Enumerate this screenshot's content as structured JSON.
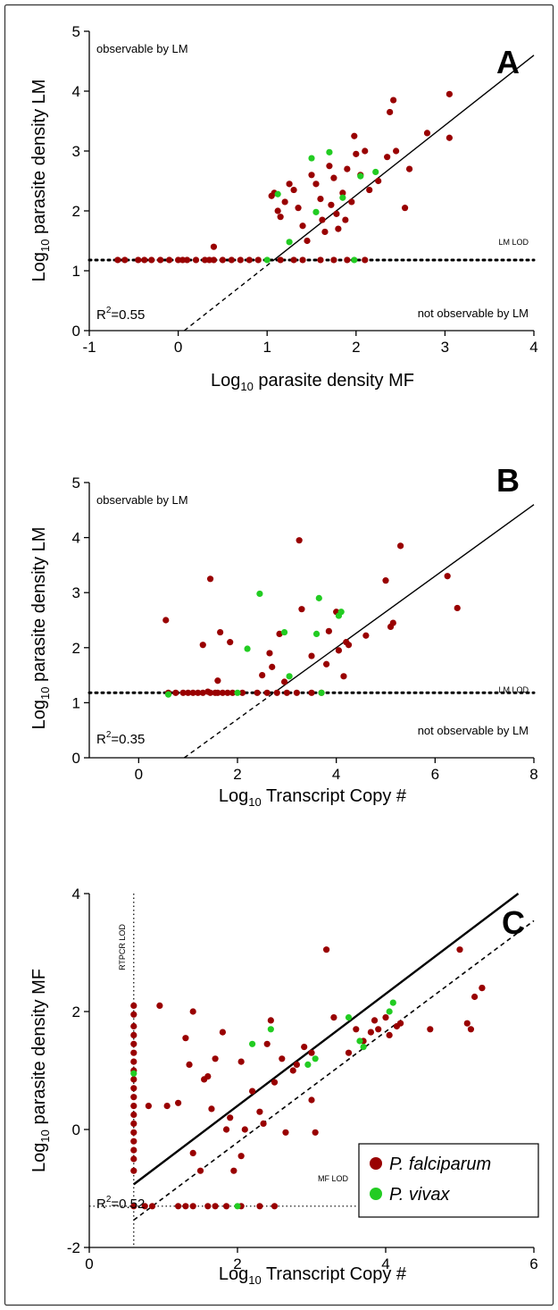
{
  "colors": {
    "falciparum": "#990000",
    "vivax": "#22cc22"
  },
  "legend": {
    "falciparum": "P. falciparum",
    "vivax": "P. vivax"
  },
  "chart_data": [
    {
      "type": "scatter",
      "panel": "A",
      "xlabel_pre": "Log",
      "xlabel_sub": "10",
      "xlabel_post": " parasite density MF",
      "ylabel_pre": "Log",
      "ylabel_sub": "10",
      "ylabel_post": " parasite density LM",
      "xlim": [
        -1,
        4
      ],
      "ylim": [
        0,
        5
      ],
      "xticks": [
        "-1",
        "0",
        "1",
        "2",
        "3",
        "4"
      ],
      "yticks": [
        "0",
        "1",
        "2",
        "3",
        "4",
        "5"
      ],
      "annotations": {
        "top_left": "observable by LM",
        "bottom_right": "not observable by LM",
        "lod": "LM LOD"
      },
      "r2_pre": "R",
      "r2_sup": "2",
      "r2_post": "=0.55",
      "lod_y": 1.18,
      "fit": {
        "slope": 1.17,
        "intercept": -0.08
      },
      "series": [
        {
          "name": "P. falciparum",
          "points": [
            [
              -0.68,
              1.18
            ],
            [
              -0.6,
              1.18
            ],
            [
              -0.45,
              1.18
            ],
            [
              -0.38,
              1.18
            ],
            [
              -0.3,
              1.18
            ],
            [
              -0.2,
              1.18
            ],
            [
              -0.1,
              1.18
            ],
            [
              0,
              1.18
            ],
            [
              0.05,
              1.18
            ],
            [
              0.1,
              1.18
            ],
            [
              0.2,
              1.18
            ],
            [
              0.3,
              1.18
            ],
            [
              0.35,
              1.18
            ],
            [
              0.4,
              1.18
            ],
            [
              0.5,
              1.18
            ],
            [
              0.6,
              1.18
            ],
            [
              0.7,
              1.18
            ],
            [
              0.8,
              1.18
            ],
            [
              0.9,
              1.18
            ],
            [
              1.15,
              1.18
            ],
            [
              1.3,
              1.18
            ],
            [
              1.4,
              1.18
            ],
            [
              1.6,
              1.18
            ],
            [
              1.75,
              1.18
            ],
            [
              1.9,
              1.18
            ],
            [
              2.1,
              1.18
            ],
            [
              0.4,
              1.4
            ],
            [
              1.05,
              2.25
            ],
            [
              1.08,
              2.3
            ],
            [
              1.12,
              2.0
            ],
            [
              1.15,
              1.9
            ],
            [
              1.2,
              2.15
            ],
            [
              1.25,
              2.45
            ],
            [
              1.3,
              2.35
            ],
            [
              1.35,
              2.05
            ],
            [
              1.4,
              1.75
            ],
            [
              1.45,
              1.5
            ],
            [
              1.5,
              2.6
            ],
            [
              1.55,
              2.45
            ],
            [
              1.6,
              2.2
            ],
            [
              1.62,
              1.85
            ],
            [
              1.65,
              1.65
            ],
            [
              1.7,
              2.75
            ],
            [
              1.72,
              2.1
            ],
            [
              1.75,
              2.55
            ],
            [
              1.78,
              1.95
            ],
            [
              1.8,
              1.7
            ],
            [
              1.85,
              2.3
            ],
            [
              1.88,
              1.85
            ],
            [
              1.9,
              2.7
            ],
            [
              1.95,
              2.15
            ],
            [
              1.98,
              3.25
            ],
            [
              2.0,
              2.95
            ],
            [
              2.05,
              2.6
            ],
            [
              2.1,
              3.0
            ],
            [
              2.15,
              2.35
            ],
            [
              2.25,
              2.5
            ],
            [
              2.35,
              2.9
            ],
            [
              2.38,
              3.65
            ],
            [
              2.42,
              3.85
            ],
            [
              2.45,
              3.0
            ],
            [
              2.55,
              2.05
            ],
            [
              2.6,
              2.7
            ],
            [
              2.8,
              3.3
            ],
            [
              3.05,
              3.95
            ],
            [
              3.05,
              3.22
            ]
          ]
        },
        {
          "name": "P. vivax",
          "points": [
            [
              1.0,
              1.18
            ],
            [
              1.12,
              2.28
            ],
            [
              1.25,
              1.48
            ],
            [
              1.5,
              2.88
            ],
            [
              1.55,
              1.98
            ],
            [
              1.7,
              2.98
            ],
            [
              1.85,
              2.22
            ],
            [
              1.98,
              1.18
            ],
            [
              2.05,
              2.58
            ],
            [
              2.22,
              2.65
            ]
          ]
        }
      ]
    },
    {
      "type": "scatter",
      "panel": "B",
      "xlabel_pre": "Log",
      "xlabel_sub": "10",
      "xlabel_post": " Transcript Copy #",
      "ylabel_pre": "Log",
      "ylabel_sub": "10",
      "ylabel_post": " parasite density LM",
      "xlim": [
        -1,
        8
      ],
      "ylim": [
        0,
        5
      ],
      "xticks": [
        "0",
        "2",
        "4",
        "6",
        "8"
      ],
      "yticks": [
        "0",
        "1",
        "2",
        "3",
        "4",
        "5"
      ],
      "annotations": {
        "top_left": "observable by LM",
        "bottom_right": "not observable by LM",
        "lod": "LM LOD"
      },
      "r2_pre": "R",
      "r2_sup": "2",
      "r2_post": "=0.35",
      "lod_y": 1.18,
      "fit": {
        "slope": 0.65,
        "intercept": -0.6
      },
      "series": [
        {
          "name": "P. falciparum",
          "points": [
            [
              0.6,
              1.18
            ],
            [
              0.75,
              1.18
            ],
            [
              0.9,
              1.18
            ],
            [
              1.0,
              1.18
            ],
            [
              1.1,
              1.18
            ],
            [
              1.2,
              1.18
            ],
            [
              1.3,
              1.18
            ],
            [
              1.4,
              1.2
            ],
            [
              1.45,
              1.18
            ],
            [
              1.55,
              1.18
            ],
            [
              1.6,
              1.18
            ],
            [
              1.7,
              1.18
            ],
            [
              1.8,
              1.18
            ],
            [
              1.9,
              1.18
            ],
            [
              2.1,
              1.18
            ],
            [
              2.4,
              1.18
            ],
            [
              2.6,
              1.18
            ],
            [
              2.8,
              1.18
            ],
            [
              3.0,
              1.18
            ],
            [
              3.2,
              1.18
            ],
            [
              3.5,
              1.18
            ],
            [
              3.7,
              1.18
            ],
            [
              0.55,
              2.5
            ],
            [
              1.3,
              2.05
            ],
            [
              1.45,
              3.25
            ],
            [
              1.6,
              1.4
            ],
            [
              1.65,
              2.28
            ],
            [
              1.85,
              2.1
            ],
            [
              2.5,
              1.5
            ],
            [
              2.65,
              1.9
            ],
            [
              2.7,
              1.65
            ],
            [
              2.85,
              2.25
            ],
            [
              2.95,
              1.38
            ],
            [
              3.25,
              3.95
            ],
            [
              3.3,
              2.7
            ],
            [
              3.5,
              1.85
            ],
            [
              3.8,
              1.7
            ],
            [
              3.85,
              2.3
            ],
            [
              4.0,
              2.65
            ],
            [
              4.05,
              1.95
            ],
            [
              4.15,
              1.48
            ],
            [
              4.2,
              2.1
            ],
            [
              4.25,
              2.05
            ],
            [
              4.6,
              2.22
            ],
            [
              5.0,
              3.22
            ],
            [
              5.1,
              2.38
            ],
            [
              5.15,
              2.45
            ],
            [
              5.3,
              3.85
            ],
            [
              6.25,
              3.3
            ],
            [
              6.45,
              2.72
            ]
          ]
        },
        {
          "name": "P. vivax",
          "points": [
            [
              0.6,
              1.15
            ],
            [
              2.0,
              1.18
            ],
            [
              2.2,
              1.98
            ],
            [
              2.45,
              2.98
            ],
            [
              2.95,
              2.28
            ],
            [
              3.05,
              1.48
            ],
            [
              3.6,
              2.25
            ],
            [
              3.65,
              2.9
            ],
            [
              3.7,
              1.18
            ],
            [
              4.05,
              2.58
            ],
            [
              4.1,
              2.65
            ]
          ]
        }
      ]
    },
    {
      "type": "scatter",
      "panel": "C",
      "xlabel_pre": "Log",
      "xlabel_sub": "10",
      "xlabel_post": " Transcript Copy #",
      "ylabel_pre": "Log",
      "ylabel_sub": "10",
      "ylabel_post": " parasite density MF",
      "xlim": [
        0,
        6
      ],
      "ylim": [
        -2,
        4
      ],
      "xticks": [
        "0",
        "2",
        "4",
        "6"
      ],
      "yticks": [
        "-2",
        "0",
        "2",
        "4"
      ],
      "annotations": {
        "lod": "MF LOD",
        "vlod": "RTPCR LOD"
      },
      "r2_pre": "R",
      "r2_sup": "2",
      "r2_post": "=0.52",
      "lod_x": 0.6,
      "lod_y": -1.3,
      "fit_solid": {
        "slope": 0.95,
        "intercept": -1.5
      },
      "fit_dashed": {
        "slope": 0.94,
        "intercept": -2.1
      },
      "series": [
        {
          "name": "P. falciparum",
          "points": [
            [
              0.6,
              2.1
            ],
            [
              0.6,
              1.95
            ],
            [
              0.6,
              1.75
            ],
            [
              0.6,
              1.6
            ],
            [
              0.6,
              1.45
            ],
            [
              0.6,
              1.3
            ],
            [
              0.6,
              1.15
            ],
            [
              0.6,
              1.0
            ],
            [
              0.6,
              0.85
            ],
            [
              0.6,
              0.7
            ],
            [
              0.6,
              0.55
            ],
            [
              0.6,
              0.4
            ],
            [
              0.6,
              0.25
            ],
            [
              0.6,
              0.1
            ],
            [
              0.6,
              -0.05
            ],
            [
              0.6,
              -0.2
            ],
            [
              0.6,
              -0.35
            ],
            [
              0.6,
              -0.5
            ],
            [
              0.6,
              -0.7
            ],
            [
              0.6,
              -1.3
            ],
            [
              0.75,
              -1.3
            ],
            [
              0.85,
              -1.3
            ],
            [
              1.2,
              -1.3
            ],
            [
              1.3,
              -1.3
            ],
            [
              1.4,
              -1.3
            ],
            [
              1.6,
              -1.3
            ],
            [
              1.7,
              -1.3
            ],
            [
              1.85,
              -1.3
            ],
            [
              2.05,
              -1.3
            ],
            [
              2.3,
              -1.3
            ],
            [
              2.5,
              -1.3
            ],
            [
              0.8,
              0.4
            ],
            [
              0.95,
              2.1
            ],
            [
              1.05,
              0.4
            ],
            [
              1.2,
              0.45
            ],
            [
              1.3,
              1.55
            ],
            [
              1.35,
              1.1
            ],
            [
              1.4,
              2.0
            ],
            [
              1.4,
              -0.4
            ],
            [
              1.5,
              -0.7
            ],
            [
              1.55,
              0.85
            ],
            [
              1.6,
              0.9
            ],
            [
              1.65,
              0.35
            ],
            [
              1.7,
              1.2
            ],
            [
              1.8,
              1.65
            ],
            [
              1.85,
              0.0
            ],
            [
              1.9,
              0.2
            ],
            [
              1.95,
              -0.7
            ],
            [
              2.05,
              1.15
            ],
            [
              2.05,
              -0.45
            ],
            [
              2.1,
              0.0
            ],
            [
              2.2,
              0.65
            ],
            [
              2.3,
              0.3
            ],
            [
              2.35,
              0.1
            ],
            [
              2.4,
              1.45
            ],
            [
              2.45,
              1.85
            ],
            [
              2.5,
              0.8
            ],
            [
              2.6,
              1.2
            ],
            [
              2.65,
              -0.05
            ],
            [
              2.75,
              1.0
            ],
            [
              2.8,
              1.1
            ],
            [
              2.9,
              1.4
            ],
            [
              3.0,
              1.3
            ],
            [
              3.0,
              0.5
            ],
            [
              3.05,
              -0.05
            ],
            [
              3.2,
              3.05
            ],
            [
              3.3,
              1.9
            ],
            [
              3.5,
              1.3
            ],
            [
              3.6,
              1.7
            ],
            [
              3.7,
              1.5
            ],
            [
              3.8,
              1.65
            ],
            [
              3.85,
              1.85
            ],
            [
              3.9,
              1.7
            ],
            [
              4.0,
              1.9
            ],
            [
              4.05,
              1.6
            ],
            [
              4.15,
              1.75
            ],
            [
              4.2,
              1.8
            ],
            [
              4.6,
              1.7
            ],
            [
              5.0,
              3.05
            ],
            [
              5.1,
              1.8
            ],
            [
              5.15,
              1.7
            ],
            [
              5.2,
              2.25
            ],
            [
              5.3,
              2.4
            ],
            [
              5.3,
              2.4
            ]
          ]
        },
        {
          "name": "P. vivax",
          "points": [
            [
              0.6,
              0.95
            ],
            [
              2.0,
              -1.3
            ],
            [
              2.2,
              1.45
            ],
            [
              2.45,
              1.7
            ],
            [
              2.95,
              1.1
            ],
            [
              3.05,
              1.2
            ],
            [
              3.5,
              1.9
            ],
            [
              3.65,
              1.5
            ],
            [
              3.7,
              1.4
            ],
            [
              4.05,
              2.0
            ],
            [
              4.1,
              2.15
            ]
          ]
        }
      ]
    }
  ]
}
